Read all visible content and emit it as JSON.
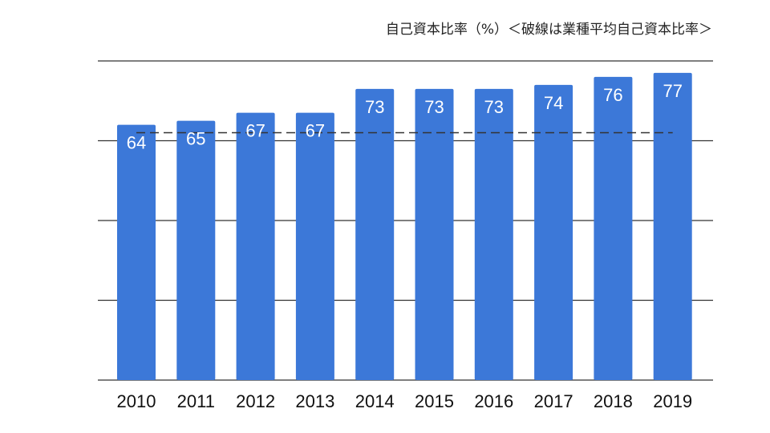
{
  "colors": {
    "bar": "#3c78d8",
    "grid": "#333333",
    "reference_line": "#333333"
  },
  "chart_data": {
    "type": "bar",
    "title": "自己資本比率（%）＜破線は業種平均自己資本比率＞",
    "xlabel": "",
    "ylabel": "",
    "categories": [
      "2010",
      "2011",
      "2012",
      "2013",
      "2014",
      "2015",
      "2016",
      "2017",
      "2018",
      "2019"
    ],
    "values": [
      64,
      65,
      67,
      67,
      73,
      73,
      73,
      74,
      76,
      77
    ],
    "data_labels": [
      "64",
      "65",
      "67",
      "67",
      "73",
      "73",
      "73",
      "74",
      "76",
      "77"
    ],
    "reference_line": {
      "value": 62,
      "style": "dashed"
    },
    "ylim": [
      0,
      80
    ],
    "gridlines": [
      0,
      20,
      40,
      60,
      80
    ],
    "grid": true,
    "legend": "none"
  }
}
